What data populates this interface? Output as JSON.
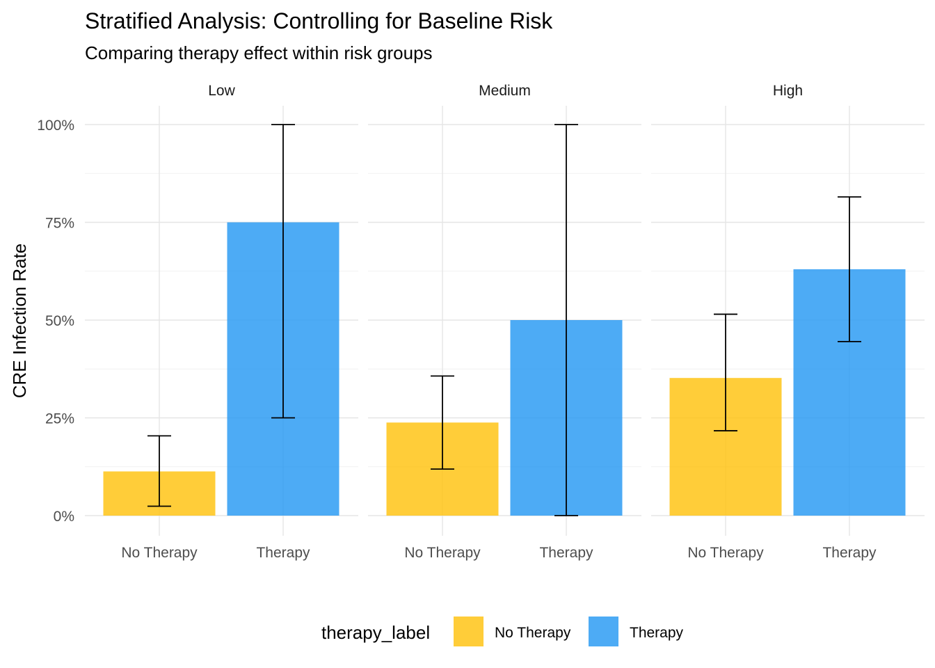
{
  "chart_data": {
    "type": "bar",
    "title": "Stratified Analysis: Controlling for Baseline Risk",
    "subtitle": "Comparing therapy effect within risk groups",
    "xlabel": "",
    "ylabel": "CRE Infection Rate",
    "ylim": [
      0,
      1
    ],
    "y_ticks": [
      "0%",
      "25%",
      "50%",
      "75%",
      "100%"
    ],
    "grid": true,
    "facets": [
      "Low",
      "Medium",
      "High"
    ],
    "categories": [
      "No Therapy",
      "Therapy"
    ],
    "legend": {
      "title": "therapy_label",
      "position": "bottom",
      "entries": [
        {
          "label": "No Therapy",
          "color": "#FFC107"
        },
        {
          "label": "Therapy",
          "color": "#2196F3"
        }
      ]
    },
    "series": [
      {
        "facet": "Low",
        "values": [
          0.113,
          0.75
        ],
        "ci_low": [
          0.024,
          0.25
        ],
        "ci_high": [
          0.204,
          1.0
        ]
      },
      {
        "facet": "Medium",
        "values": [
          0.238,
          0.5
        ],
        "ci_low": [
          0.119,
          0.0
        ],
        "ci_high": [
          0.357,
          1.0
        ]
      },
      {
        "facet": "High",
        "values": [
          0.352,
          0.63
        ],
        "ci_low": [
          0.217,
          0.445
        ],
        "ci_high": [
          0.515,
          0.815
        ]
      }
    ]
  }
}
